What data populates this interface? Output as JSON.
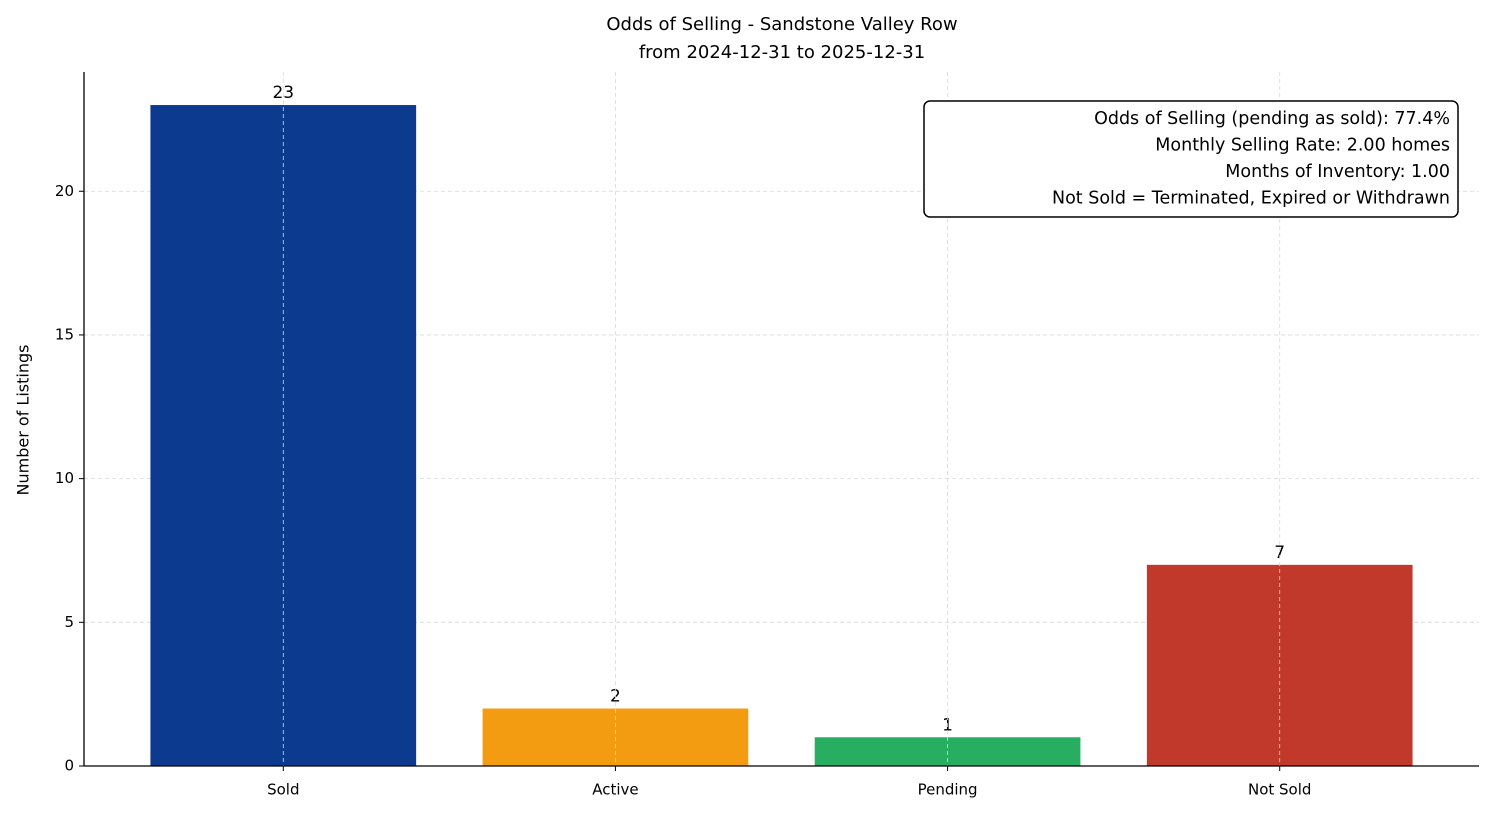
{
  "chart_data": {
    "type": "bar",
    "title": "Odds of Selling - Sandstone Valley Row",
    "subtitle": "from 2024-12-31 to 2025-12-31",
    "y_label": "Number of Listings",
    "categories": [
      "Sold",
      "Active",
      "Pending",
      "Not Sold"
    ],
    "values": [
      23,
      2,
      1,
      7
    ],
    "colors": [
      "#0b3a8e",
      "#f39c12",
      "#27ae60",
      "#c0392b"
    ],
    "ylim": [
      0,
      24.15
    ],
    "yticks": [
      0,
      5,
      10,
      15,
      20
    ],
    "grid": true,
    "annotations": [
      "Odds of Selling (pending as sold): 77.4%",
      "Monthly Selling Rate: 2.00 homes",
      "Months of Inventory: 1.00",
      "Not Sold = Terminated, Expired or Withdrawn"
    ]
  }
}
